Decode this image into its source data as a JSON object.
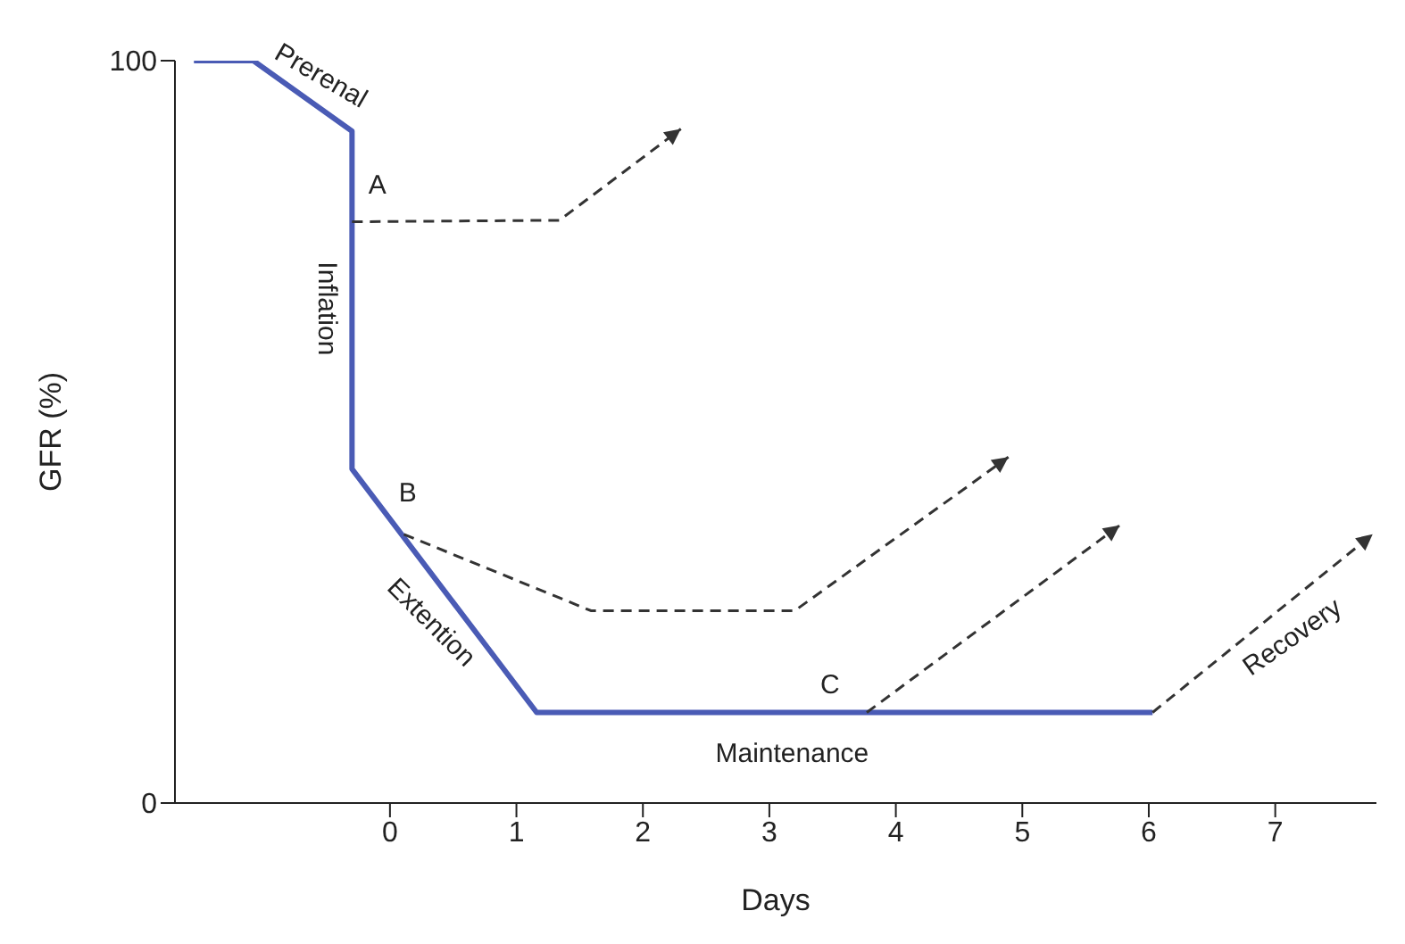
{
  "chart_data": {
    "type": "line",
    "xlabel": "Days",
    "ylabel": "GFR (%)",
    "xlim": [
      -1.7,
      7.8
    ],
    "ylim": [
      0,
      100
    ],
    "xticks": [
      0,
      1,
      2,
      3,
      4,
      5,
      6,
      7
    ],
    "yticks": [
      0,
      100
    ],
    "marker": "none",
    "series": [
      {
        "color": "#4a5bb5",
        "line_style": "solid",
        "x": [
          -1.55,
          -1.08,
          -0.3,
          -0.3,
          1.16,
          6.03
        ],
        "values": [
          100,
          100,
          90.5,
          45,
          12.2,
          12.2
        ]
      }
    ],
    "annotations": [
      "Prerenal",
      "A",
      "Inflation",
      "B",
      "Extention",
      "C",
      "Maintenance",
      "Recovery"
    ]
  }
}
